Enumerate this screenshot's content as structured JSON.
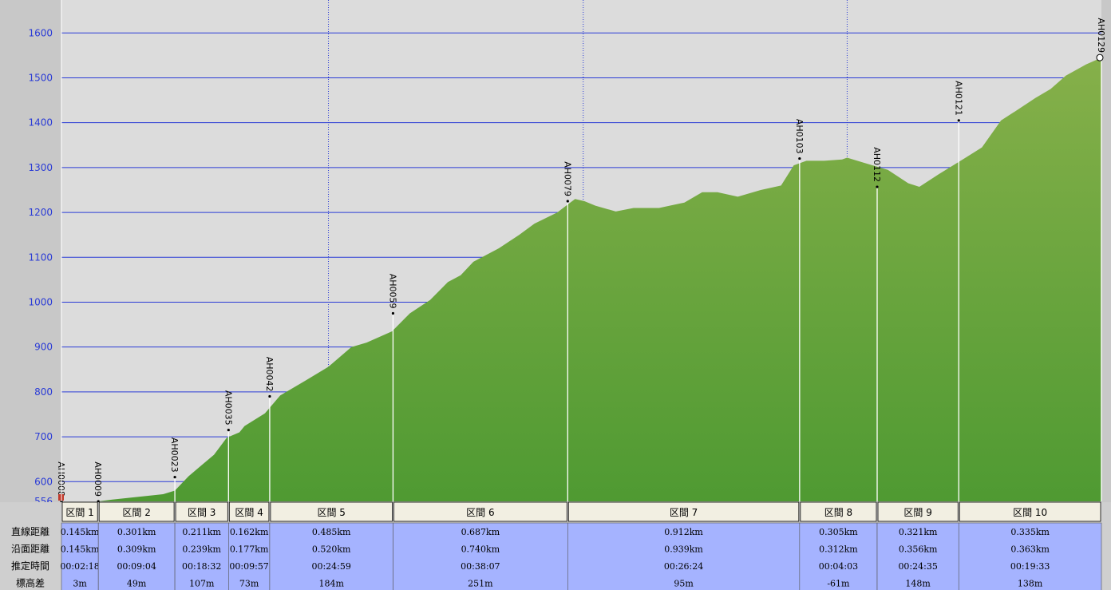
{
  "chart_data": {
    "type": "area",
    "title": "",
    "xlabel": "",
    "ylabel": "",
    "ylim": [
      556,
      1660
    ],
    "y_ticks": [
      556,
      600,
      700,
      800,
      900,
      1000,
      1100,
      1200,
      1300,
      1400,
      1500,
      1600
    ],
    "grid": true,
    "colors": {
      "area_top": "#86b04a",
      "area_bottom": "#4f9a32",
      "plot_bg": "#dcdcdc",
      "grid": "#2a3bd6",
      "table_bg": "#a5b3ff",
      "header_bg": "#f2efe2"
    },
    "profile": [
      [
        0,
        556
      ],
      [
        0.145,
        556
      ],
      [
        0.2,
        560
      ],
      [
        0.3,
        566
      ],
      [
        0.4,
        572
      ],
      [
        0.446,
        580
      ],
      [
        0.5,
        612
      ],
      [
        0.6,
        660
      ],
      [
        0.65,
        698
      ],
      [
        0.7,
        710
      ],
      [
        0.72,
        724
      ],
      [
        0.8,
        752
      ],
      [
        0.86,
        792
      ],
      [
        0.95,
        822
      ],
      [
        1.05,
        856
      ],
      [
        1.14,
        900
      ],
      [
        1.2,
        910
      ],
      [
        1.3,
        935
      ],
      [
        1.37,
        975
      ],
      [
        1.45,
        1005
      ],
      [
        1.52,
        1045
      ],
      [
        1.57,
        1060
      ],
      [
        1.62,
        1090
      ],
      [
        1.72,
        1120
      ],
      [
        1.8,
        1150
      ],
      [
        1.86,
        1175
      ],
      [
        1.95,
        1200
      ],
      [
        2.02,
        1230
      ],
      [
        2.057,
        1225
      ],
      [
        2.1,
        1215
      ],
      [
        2.18,
        1202
      ],
      [
        2.25,
        1210
      ],
      [
        2.35,
        1210
      ],
      [
        2.45,
        1222
      ],
      [
        2.52,
        1245
      ],
      [
        2.58,
        1245
      ],
      [
        2.66,
        1235
      ],
      [
        2.75,
        1250
      ],
      [
        2.83,
        1260
      ],
      [
        2.88,
        1305
      ],
      [
        2.93,
        1315
      ],
      [
        3.0,
        1315
      ],
      [
        3.07,
        1318
      ],
      [
        3.09,
        1322
      ],
      [
        3.16,
        1310
      ],
      [
        3.25,
        1295
      ],
      [
        3.33,
        1265
      ],
      [
        3.374,
        1257
      ],
      [
        3.45,
        1285
      ],
      [
        3.55,
        1320
      ],
      [
        3.62,
        1345
      ],
      [
        3.695,
        1405
      ],
      [
        3.75,
        1425
      ],
      [
        3.83,
        1455
      ],
      [
        3.89,
        1475
      ],
      [
        3.95,
        1505
      ],
      [
        4.03,
        1530
      ],
      [
        4.09,
        1545
      ]
    ],
    "waypoints": [
      {
        "name": "AH0008",
        "x": 0,
        "y": 556
      },
      {
        "name": "AH0009",
        "x": 0.145,
        "y": 556
      },
      {
        "name": "AH0023",
        "x": 0.446,
        "y": 610
      },
      {
        "name": "AH0035",
        "x": 0.657,
        "y": 715
      },
      {
        "name": "AH0042",
        "x": 0.819,
        "y": 790
      },
      {
        "name": "AH0059",
        "x": 1.304,
        "y": 975
      },
      {
        "name": "AH0079",
        "x": 1.991,
        "y": 1225
      },
      {
        "name": "AH0103",
        "x": 2.903,
        "y": 1320
      },
      {
        "name": "AH0112",
        "x": 3.208,
        "y": 1257
      },
      {
        "name": "AH0121",
        "x": 3.529,
        "y": 1405
      },
      {
        "name": "AH0129",
        "x": 3.864,
        "y": 1545
      }
    ],
    "segments": [
      {
        "name": "区間 1",
        "straight": "0.145km",
        "surface": "0.145km",
        "time": "00:02:18",
        "elev": "3m"
      },
      {
        "name": "区間 2",
        "straight": "0.301km",
        "surface": "0.309km",
        "time": "00:09:04",
        "elev": "49m"
      },
      {
        "name": "区間 3",
        "straight": "0.211km",
        "surface": "0.239km",
        "time": "00:18:32",
        "elev": "107m"
      },
      {
        "name": "区間 4",
        "straight": "0.162km",
        "surface": "0.177km",
        "time": "00:09:57",
        "elev": "73m"
      },
      {
        "name": "区間 5",
        "straight": "0.485km",
        "surface": "0.520km",
        "time": "00:24:59",
        "elev": "184m"
      },
      {
        "name": "区間 6",
        "straight": "0.687km",
        "surface": "0.740km",
        "time": "00:38:07",
        "elev": "251m"
      },
      {
        "name": "区間 7",
        "straight": "0.912km",
        "surface": "0.939km",
        "time": "00:26:24",
        "elev": "95m"
      },
      {
        "name": "区間 8",
        "straight": "0.305km",
        "surface": "0.312km",
        "time": "00:04:03",
        "elev": "-61m"
      },
      {
        "name": "区間 9",
        "straight": "0.321km",
        "surface": "0.356km",
        "time": "00:24:35",
        "elev": "148m"
      },
      {
        "name": "区間 10",
        "straight": "0.335km",
        "surface": "0.363km",
        "time": "00:19:33",
        "elev": "138m"
      }
    ],
    "row_labels": [
      "直線距離",
      "沿面距離",
      "推定時間",
      "標高差"
    ]
  }
}
